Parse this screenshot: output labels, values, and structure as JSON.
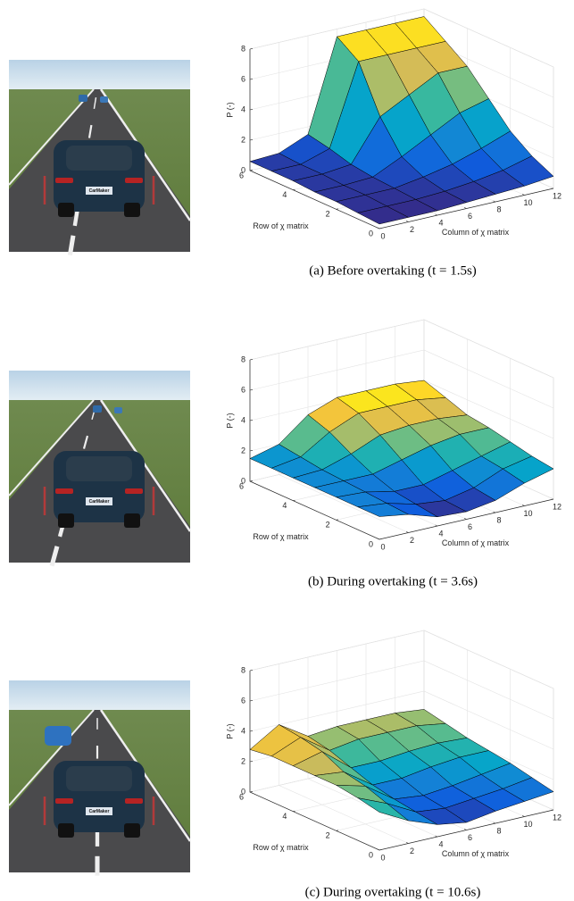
{
  "panels": [
    {
      "plate": "CarMaker",
      "caption": "(a) Before overtaking (t = 1.5s)",
      "chart": {
        "type": "surface",
        "colormap": "parula",
        "xlabel": "Column of χ matrix",
        "ylabel": "Row of χ matrix",
        "zlabel": "P (-)",
        "x": [
          0,
          2,
          4,
          6,
          8,
          10,
          12
        ],
        "y": [
          0,
          1,
          2,
          3,
          4,
          5,
          6
        ],
        "z": [
          [
            0.3,
            0.3,
            0.3,
            0.4,
            0.5,
            0.6,
            0.8
          ],
          [
            0.4,
            0.4,
            0.4,
            0.5,
            0.7,
            1.0,
            1.5
          ],
          [
            0.5,
            0.5,
            0.5,
            0.8,
            1.2,
            1.8,
            2.5
          ],
          [
            0.5,
            0.5,
            0.6,
            1.5,
            2.5,
            3.5,
            4.0
          ],
          [
            0.6,
            0.6,
            0.8,
            3.5,
            4.5,
            5.5,
            5.5
          ],
          [
            0.6,
            0.6,
            1.2,
            6.5,
            6.5,
            6.5,
            6.5
          ],
          [
            0.6,
            0.7,
            1.5,
            7.5,
            7.5,
            7.5,
            7.5
          ]
        ],
        "xlim": [
          0,
          12
        ],
        "ylim": [
          0,
          6
        ],
        "zlim": [
          0,
          8
        ],
        "xticks": [
          0,
          2,
          4,
          6,
          8,
          10,
          12
        ],
        "yticks": [
          0,
          2,
          4,
          6
        ],
        "zticks": [
          0,
          2,
          4,
          6,
          8
        ],
        "grid": true
      }
    },
    {
      "plate": "CarMaker",
      "caption": "(b) During overtaking (t = 3.6s)",
      "chart": {
        "type": "surface",
        "colormap": "parula",
        "xlabel": "Column of χ matrix",
        "ylabel": "Row of χ matrix",
        "zlabel": "P (-)",
        "x": [
          0,
          2,
          4,
          6,
          8,
          10,
          12
        ],
        "y": [
          0,
          1,
          2,
          3,
          4,
          5,
          6
        ],
        "z": [
          [
            1.5,
            1.2,
            0.6,
            0.5,
            0.8,
            1.5,
            2.0
          ],
          [
            1.5,
            1.3,
            0.8,
            0.6,
            1.0,
            1.8,
            2.2
          ],
          [
            1.5,
            1.4,
            1.0,
            1.0,
            1.5,
            2.0,
            2.5
          ],
          [
            1.5,
            1.5,
            1.5,
            2.0,
            2.5,
            2.8,
            2.8
          ],
          [
            1.5,
            1.6,
            2.2,
            3.0,
            3.2,
            3.2,
            3.0
          ],
          [
            1.5,
            1.8,
            3.0,
            3.8,
            3.8,
            3.8,
            3.5
          ],
          [
            1.5,
            2.0,
            3.5,
            4.2,
            4.2,
            4.2,
            4.0
          ]
        ],
        "xlim": [
          0,
          12
        ],
        "ylim": [
          0,
          6
        ],
        "zlim": [
          0,
          8
        ],
        "xticks": [
          0,
          2,
          4,
          6,
          8,
          10,
          12
        ],
        "yticks": [
          0,
          2,
          4,
          6
        ],
        "zticks": [
          0,
          2,
          4,
          6,
          8
        ],
        "grid": true
      }
    },
    {
      "plate": "CarMaker",
      "caption": "(c) During overtaking (t = 10.6s)",
      "chart": {
        "type": "surface",
        "colormap": "parula",
        "xlabel": "Column of χ matrix",
        "ylabel": "Row of χ matrix",
        "zlabel": "P (-)",
        "x": [
          0,
          2,
          4,
          6,
          8,
          10,
          12
        ],
        "y": [
          0,
          1,
          2,
          3,
          4,
          5,
          6
        ],
        "z": [
          [
            2.5,
            1.5,
            0.8,
            0.5,
            0.8,
            1.0,
            1.2
          ],
          [
            2.8,
            2.0,
            1.0,
            0.8,
            1.0,
            1.2,
            1.5
          ],
          [
            3.0,
            2.5,
            1.2,
            1.0,
            1.2,
            1.5,
            1.8
          ],
          [
            3.0,
            2.8,
            1.5,
            1.5,
            1.8,
            2.0,
            2.0
          ],
          [
            3.0,
            3.5,
            2.0,
            2.0,
            2.2,
            2.3,
            2.2
          ],
          [
            3.0,
            3.8,
            2.5,
            2.8,
            2.8,
            2.8,
            2.5
          ],
          [
            2.8,
            4.0,
            2.8,
            3.0,
            3.0,
            3.0,
            2.8
          ]
        ],
        "xlim": [
          0,
          12
        ],
        "ylim": [
          0,
          6
        ],
        "zlim": [
          0,
          8
        ],
        "xticks": [
          0,
          2,
          4,
          6,
          8,
          10,
          12
        ],
        "yticks": [
          0,
          2,
          4,
          6
        ],
        "zticks": [
          0,
          2,
          4,
          6,
          8
        ],
        "grid": true
      }
    }
  ]
}
